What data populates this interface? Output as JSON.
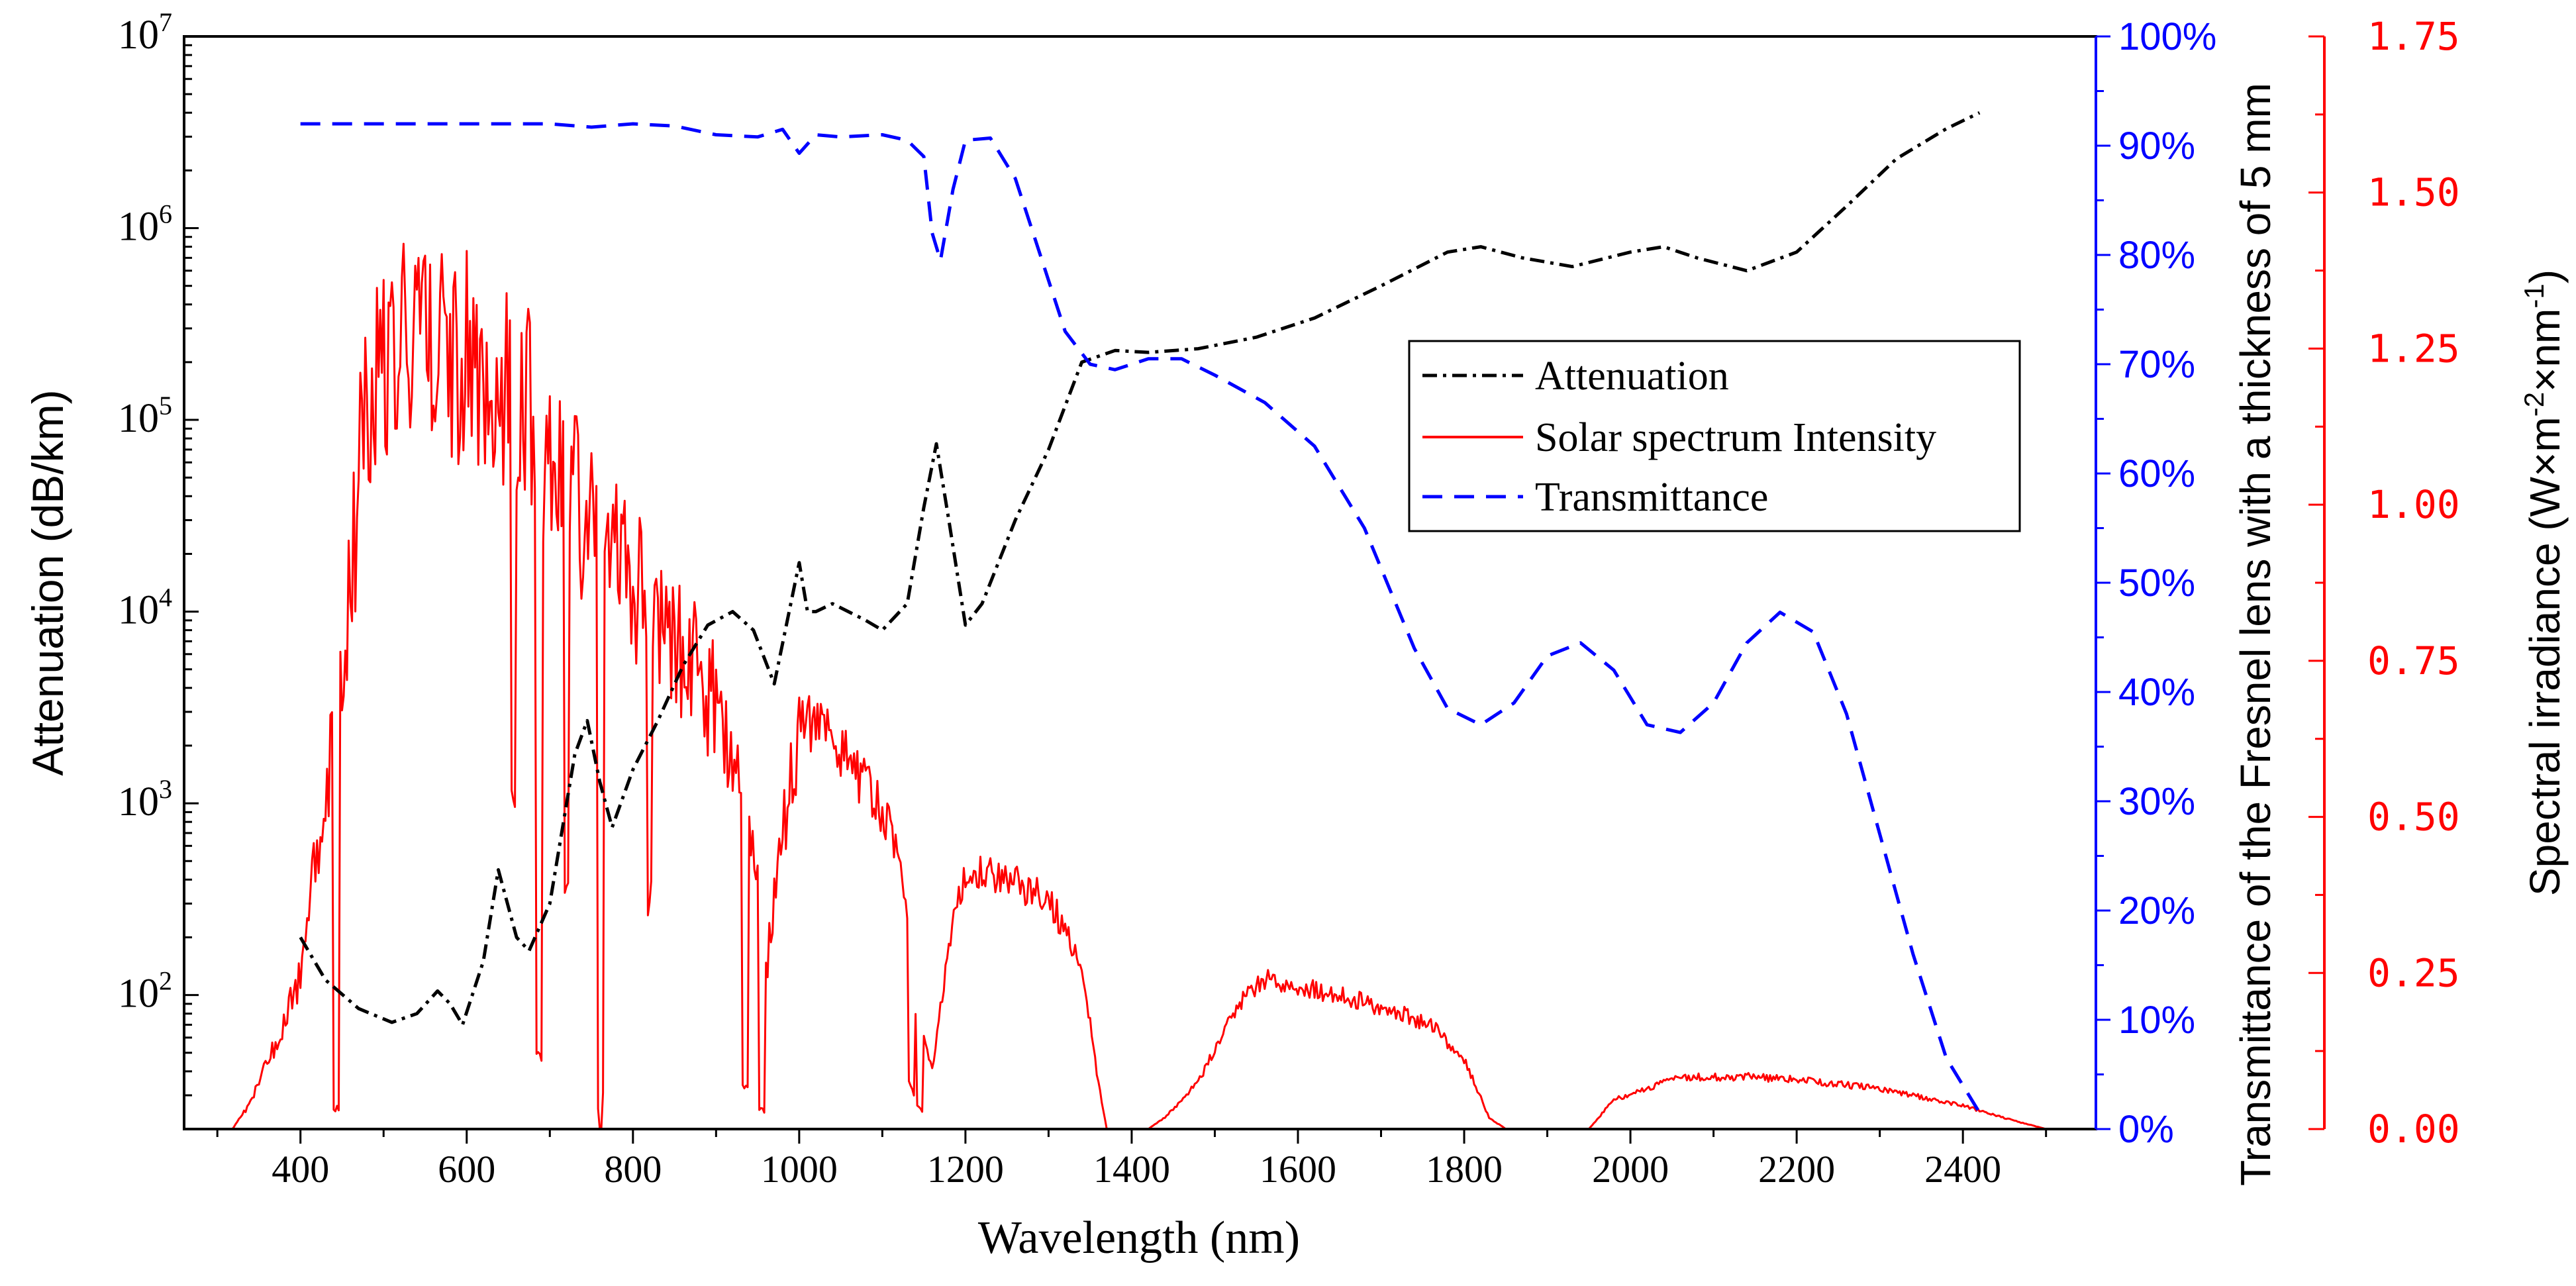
{
  "colors": {
    "attenuation": "#000000",
    "solar": "#ff0000",
    "transmittance": "#0000ff",
    "axis_black": "#000000",
    "axis_blue": "#0000ff",
    "axis_red": "#ff0000"
  },
  "chart_data": {
    "type": "line",
    "title": "",
    "xlabel": "Wavelength (nm)",
    "xlim": [
      260,
      2560
    ],
    "x_ticks": [
      "400",
      "600",
      "800",
      "1000",
      "1200",
      "1400",
      "1600",
      "1800",
      "2000",
      "2200",
      "2400"
    ],
    "y_left": {
      "label": "Attenuation (dB/km)",
      "scale": "log",
      "range": [
        20,
        10000000
      ],
      "ticks": [
        {
          "value": 100,
          "base": "10",
          "exp": "2"
        },
        {
          "value": 1000,
          "base": "10",
          "exp": "3"
        },
        {
          "value": 10000,
          "base": "10",
          "exp": "4"
        },
        {
          "value": 100000,
          "base": "10",
          "exp": "5"
        },
        {
          "value": 1000000,
          "base": "10",
          "exp": "6"
        },
        {
          "value": 10000000,
          "base": "10",
          "exp": "7"
        }
      ]
    },
    "y_right1": {
      "label": "Transmittance of the Fresnel lens with a thickness of 5 mm",
      "range": [
        0,
        100
      ],
      "tick_labels": [
        "0%",
        "10%",
        "20%",
        "30%",
        "40%",
        "50%",
        "60%",
        "70%",
        "80%",
        "90%",
        "100%"
      ]
    },
    "y_right2": {
      "label_main": "Spectral irradiance (W×m",
      "label_exp1": "-2",
      "label_mid": "×nm",
      "label_exp2": "-1",
      "label_end": ")",
      "range": [
        0,
        1.75
      ],
      "tick_labels": [
        "0.00",
        "0.25",
        "0.50",
        "0.75",
        "1.00",
        "1.25",
        "1.50",
        "1.75"
      ]
    },
    "legend": {
      "position": "center-right",
      "entries": [
        "Attenuation",
        "Solar spectrum Intensity",
        "Transmittance"
      ]
    },
    "series": [
      {
        "name": "Attenuation",
        "axis": "left",
        "style": "dashdot",
        "x": [
          400,
          430,
          470,
          510,
          540,
          565,
          580,
          595,
          620,
          638,
          660,
          675,
          700,
          730,
          745,
          760,
          775,
          800,
          830,
          860,
          890,
          920,
          945,
          970,
          1000,
          1010,
          1020,
          1040,
          1080,
          1100,
          1130,
          1150,
          1165,
          1180,
          1200,
          1220,
          1260,
          1300,
          1340,
          1380,
          1420,
          1480,
          1550,
          1620,
          1700,
          1780,
          1820,
          1870,
          1930,
          2000,
          2040,
          2080,
          2140,
          2200,
          2260,
          2320,
          2380,
          2420
        ],
        "y": [
          200,
          120,
          85,
          72,
          80,
          105,
          90,
          70,
          150,
          450,
          200,
          170,
          300,
          1800,
          2700,
          1300,
          750,
          1500,
          2700,
          5200,
          8500,
          10000,
          8000,
          4200,
          18000,
          10000,
          10000,
          11000,
          9000,
          8000,
          11000,
          35000,
          75000,
          30000,
          8500,
          11000,
          30000,
          70000,
          200000,
          230000,
          225000,
          235000,
          270000,
          340000,
          500000,
          750000,
          800000,
          700000,
          630000,
          750000,
          800000,
          700000,
          600000,
          750000,
          1300000,
          2300000,
          3300000,
          4000000
        ]
      },
      {
        "name": "Transmittance",
        "axis": "right1",
        "style": "dashed",
        "x": [
          400,
          500,
          600,
          700,
          750,
          800,
          850,
          900,
          950,
          980,
          1000,
          1020,
          1050,
          1100,
          1130,
          1150,
          1160,
          1170,
          1185,
          1200,
          1230,
          1260,
          1290,
          1320,
          1350,
          1380,
          1420,
          1460,
          1500,
          1560,
          1620,
          1680,
          1740,
          1780,
          1820,
          1860,
          1900,
          1940,
          1980,
          2020,
          2060,
          2100,
          2140,
          2180,
          2220,
          2260,
          2300,
          2340,
          2380,
          2420
        ],
        "y": [
          92,
          92,
          92,
          92,
          91.7,
          92,
          91.8,
          91,
          90.8,
          91.5,
          89.3,
          91,
          90.8,
          91,
          90.5,
          89,
          82,
          79.5,
          86,
          90.5,
          90.7,
          87,
          80,
          73,
          70,
          69.5,
          70.5,
          70.5,
          69,
          66.5,
          62.5,
          55,
          44,
          38.5,
          37,
          39,
          43.3,
          44.5,
          42,
          37,
          36.3,
          39,
          44.5,
          47.3,
          45.5,
          38,
          27,
          16,
          6.5,
          1.5
        ]
      },
      {
        "name": "Solar spectrum Intensity",
        "axis": "right2",
        "style": "solid"
      }
    ]
  }
}
